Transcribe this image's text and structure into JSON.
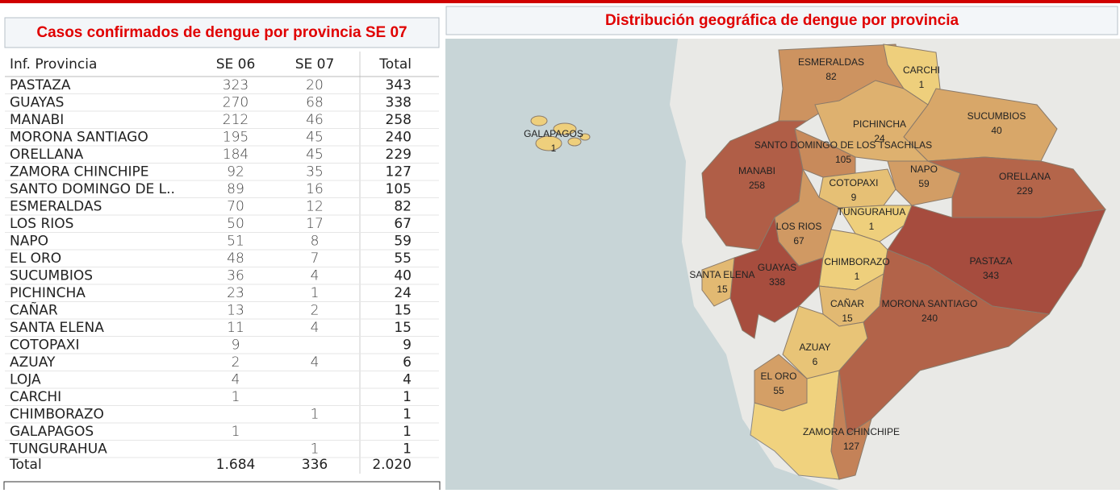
{
  "table": {
    "title": "Casos confirmados de dengue por provincia SE 07",
    "header": [
      "Inf. Provincia",
      "SE 06",
      "SE 07",
      "Total"
    ],
    "rows": [
      [
        "PASTAZA",
        323,
        20,
        343
      ],
      [
        "GUAYAS",
        270,
        68,
        338
      ],
      [
        "MANABI",
        212,
        46,
        258
      ],
      [
        "MORONA SANTIAGO",
        195,
        45,
        240
      ],
      [
        "ORELLANA",
        184,
        45,
        229
      ],
      [
        "ZAMORA CHINCHIPE",
        92,
        35,
        127
      ],
      [
        "SANTO DOMINGO DE L..",
        89,
        16,
        105
      ],
      [
        "ESMERALDAS",
        70,
        12,
        82
      ],
      [
        "LOS RIOS",
        50,
        17,
        67
      ],
      [
        "NAPO",
        51,
        8,
        59
      ],
      [
        "EL ORO",
        48,
        7,
        55
      ],
      [
        "SUCUMBIOS",
        36,
        4,
        40
      ],
      [
        "PICHINCHA",
        23,
        1,
        24
      ],
      [
        "CAÑAR",
        13,
        2,
        15
      ],
      [
        "SANTA ELENA",
        11,
        4,
        15
      ],
      [
        "COTOPAXI",
        9,
        null,
        9
      ],
      [
        "AZUAY",
        2,
        4,
        6
      ],
      [
        "LOJA",
        4,
        null,
        4
      ],
      [
        "CARCHI",
        1,
        null,
        1
      ],
      [
        "CHIMBORAZO",
        null,
        1,
        1
      ],
      [
        "GALAPAGOS",
        1,
        null,
        1
      ],
      [
        "TUNGURAHUA",
        null,
        1,
        1
      ]
    ],
    "footer": [
      "Total",
      "1.684",
      336,
      "2.020"
    ]
  },
  "map": {
    "title": "Distribución geográfica de dengue por provincia",
    "regions": [
      {
        "name": "ESMERALDAS",
        "value": 82
      },
      {
        "name": "CARCHI",
        "value": 1
      },
      {
        "name": "SUCUMBIOS",
        "value": 40
      },
      {
        "name": "PICHINCHA",
        "value": 24
      },
      {
        "name": "SANTO DOMINGO DE LOS TSACHILAS",
        "value": 105
      },
      {
        "name": "MANABI",
        "value": 258
      },
      {
        "name": "NAPO",
        "value": 59
      },
      {
        "name": "ORELLANA",
        "value": 229
      },
      {
        "name": "COTOPAXI",
        "value": 9
      },
      {
        "name": "TUNGURAHUA",
        "value": 1
      },
      {
        "name": "LOS RIOS",
        "value": 67
      },
      {
        "name": "PASTAZA",
        "value": 343
      },
      {
        "name": "GUAYAS",
        "value": 338
      },
      {
        "name": "SANTA ELENA",
        "value": 15
      },
      {
        "name": "CHIMBORAZO",
        "value": 1
      },
      {
        "name": "CAÑAR",
        "value": 15
      },
      {
        "name": "MORONA SANTIAGO",
        "value": 240
      },
      {
        "name": "AZUAY",
        "value": 6
      },
      {
        "name": "EL ORO",
        "value": 55
      },
      {
        "name": "ZAMORA CHINCHIPE",
        "value": 127
      },
      {
        "name": "GALAPAGOS",
        "value": 1
      }
    ]
  }
}
